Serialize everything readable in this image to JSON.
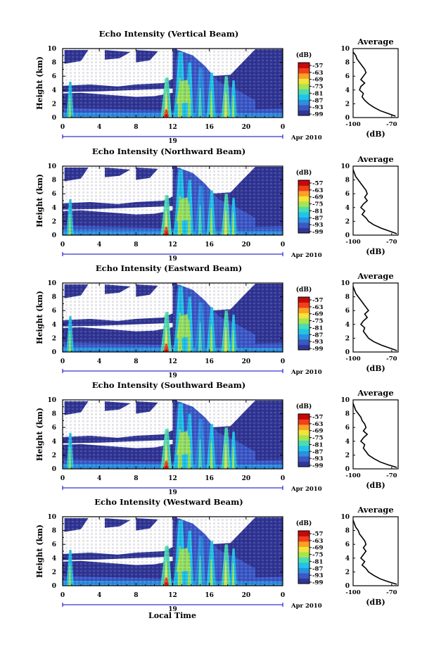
{
  "colorbar_unit": "(dB)",
  "colorbar_levels": [
    "-57",
    "-63",
    "-69",
    "-75",
    "-81",
    "-87",
    "-93",
    "-99"
  ],
  "colors": {
    "scale": [
      "#313695",
      "#3b58c6",
      "#2c8fe0",
      "#1fc5e8",
      "#4cdcb2",
      "#a6e54f",
      "#f1e43a",
      "#fca124",
      "#f0401c",
      "#c70909"
    ],
    "background": "#ffffff",
    "axis": "#000000",
    "date_marker": "#0000cc"
  },
  "x_axis_label": "Local Time",
  "date_label": "Apr 2010",
  "day_tick_label": "19",
  "average_ylabel": "(dB)",
  "chart_data": [
    {
      "type": "heatmap",
      "title": "Echo Intensity (Vertical Beam)",
      "ylabel": "Height (km)",
      "x_ticks": [
        "0",
        "4",
        "8",
        "12",
        "16",
        "20",
        "0"
      ],
      "y_ticks": [
        "0",
        "2",
        "4",
        "6",
        "8",
        "10"
      ],
      "xlim": [
        0,
        24
      ],
      "ylim": [
        0,
        10
      ],
      "profile": {
        "title": "Average",
        "xlim": [
          -100,
          -65
        ],
        "x_ticks": [
          "-100",
          "-70"
        ],
        "y_ticks": [
          "0",
          "2",
          "4",
          "6",
          "8",
          "10"
        ],
        "heights": [
          0.2,
          0.6,
          1.0,
          1.5,
          2.0,
          2.5,
          3.0,
          3.5,
          4.0,
          4.5,
          5.0,
          5.5,
          6.0,
          6.5,
          7.0,
          7.5,
          8.0,
          8.5,
          9.0,
          9.5
        ],
        "values": [
          -67,
          -73,
          -79,
          -84,
          -88,
          -91,
          -93,
          -92,
          -95,
          -94,
          -91,
          -94,
          -92,
          -90,
          -91,
          -93,
          -95,
          -97,
          -98,
          -100
        ]
      }
    },
    {
      "type": "heatmap",
      "title": "Echo Intensity (Northward Beam)",
      "ylabel": "Height (km)",
      "x_ticks": [
        "0",
        "4",
        "8",
        "12",
        "16",
        "20",
        "0"
      ],
      "y_ticks": [
        "0",
        "2",
        "4",
        "6",
        "8",
        "10"
      ],
      "xlim": [
        0,
        24
      ],
      "ylim": [
        0,
        10
      ],
      "profile": {
        "title": "Average",
        "xlim": [
          -100,
          -65
        ],
        "x_ticks": [
          "-100",
          "-70"
        ],
        "y_ticks": [
          "0",
          "2",
          "4",
          "6",
          "8",
          "10"
        ],
        "heights": [
          0.2,
          0.6,
          1.0,
          1.5,
          2.0,
          2.5,
          3.0,
          3.5,
          4.0,
          4.5,
          5.0,
          5.5,
          6.0,
          6.5,
          7.0,
          7.5,
          8.0,
          8.5,
          9.0,
          9.5
        ],
        "values": [
          -66,
          -72,
          -78,
          -84,
          -88,
          -90,
          -93,
          -91,
          -94,
          -92,
          -89,
          -91,
          -89,
          -90,
          -92,
          -94,
          -96,
          -98,
          -99,
          -100
        ]
      }
    },
    {
      "type": "heatmap",
      "title": "Echo Intensity (Eastward Beam)",
      "ylabel": "Height (km)",
      "x_ticks": [
        "0",
        "4",
        "8",
        "12",
        "16",
        "20",
        "0"
      ],
      "y_ticks": [
        "0",
        "2",
        "4",
        "6",
        "8",
        "10"
      ],
      "xlim": [
        0,
        24
      ],
      "ylim": [
        0,
        10
      ],
      "profile": {
        "title": "Average",
        "xlim": [
          -100,
          -65
        ],
        "x_ticks": [
          "-100",
          "-70"
        ],
        "y_ticks": [
          "0",
          "2",
          "4",
          "6",
          "8",
          "10"
        ],
        "heights": [
          0.2,
          0.6,
          1.0,
          1.5,
          2.0,
          2.5,
          3.0,
          3.5,
          4.0,
          4.5,
          5.0,
          5.5,
          6.0,
          6.5,
          7.0,
          7.5,
          8.0,
          8.5,
          9.0,
          9.5
        ],
        "values": [
          -66,
          -72,
          -78,
          -84,
          -88,
          -90,
          -92,
          -91,
          -94,
          -92,
          -89,
          -91,
          -88,
          -90,
          -92,
          -94,
          -96,
          -98,
          -99,
          -100
        ]
      }
    },
    {
      "type": "heatmap",
      "title": "Echo Intensity (Southward Beam)",
      "ylabel": "Height (km)",
      "x_ticks": [
        "0",
        "4",
        "8",
        "12",
        "16",
        "20",
        "0"
      ],
      "y_ticks": [
        "0",
        "2",
        "4",
        "6",
        "8",
        "10"
      ],
      "xlim": [
        0,
        24
      ],
      "ylim": [
        0,
        10
      ],
      "profile": {
        "title": "Average",
        "xlim": [
          -100,
          -65
        ],
        "x_ticks": [
          "-100",
          "-70"
        ],
        "y_ticks": [
          "0",
          "2",
          "4",
          "6",
          "8",
          "10"
        ],
        "heights": [
          0.2,
          0.6,
          1.0,
          1.5,
          2.0,
          2.5,
          3.0,
          3.5,
          4.0,
          4.5,
          5.0,
          5.5,
          6.0,
          6.5,
          7.0,
          7.5,
          8.0,
          8.5,
          9.0,
          9.5
        ],
        "values": [
          -66,
          -73,
          -79,
          -84,
          -88,
          -90,
          -92,
          -91,
          -94,
          -92,
          -89,
          -92,
          -90,
          -91,
          -93,
          -94,
          -96,
          -98,
          -99,
          -100
        ]
      }
    },
    {
      "type": "heatmap",
      "title": "Echo Intensity (Westward Beam)",
      "ylabel": "Height (km)",
      "x_ticks": [
        "0",
        "4",
        "8",
        "12",
        "16",
        "20",
        "0"
      ],
      "y_ticks": [
        "0",
        "2",
        "4",
        "6",
        "8",
        "10"
      ],
      "xlim": [
        0,
        24
      ],
      "ylim": [
        0,
        10
      ],
      "profile": {
        "title": "Average",
        "xlim": [
          -100,
          -65
        ],
        "x_ticks": [
          "-100",
          "-70"
        ],
        "y_ticks": [
          "0",
          "2",
          "4",
          "6",
          "8",
          "10"
        ],
        "heights": [
          0.2,
          0.6,
          1.0,
          1.5,
          2.0,
          2.5,
          3.0,
          3.5,
          4.0,
          4.5,
          5.0,
          5.5,
          6.0,
          6.5,
          7.0,
          7.5,
          8.0,
          8.5,
          9.0,
          9.5
        ],
        "values": [
          -66,
          -73,
          -79,
          -84,
          -88,
          -90,
          -93,
          -91,
          -94,
          -92,
          -90,
          -92,
          -90,
          -91,
          -93,
          -95,
          -96,
          -98,
          -99,
          -100
        ]
      }
    }
  ]
}
